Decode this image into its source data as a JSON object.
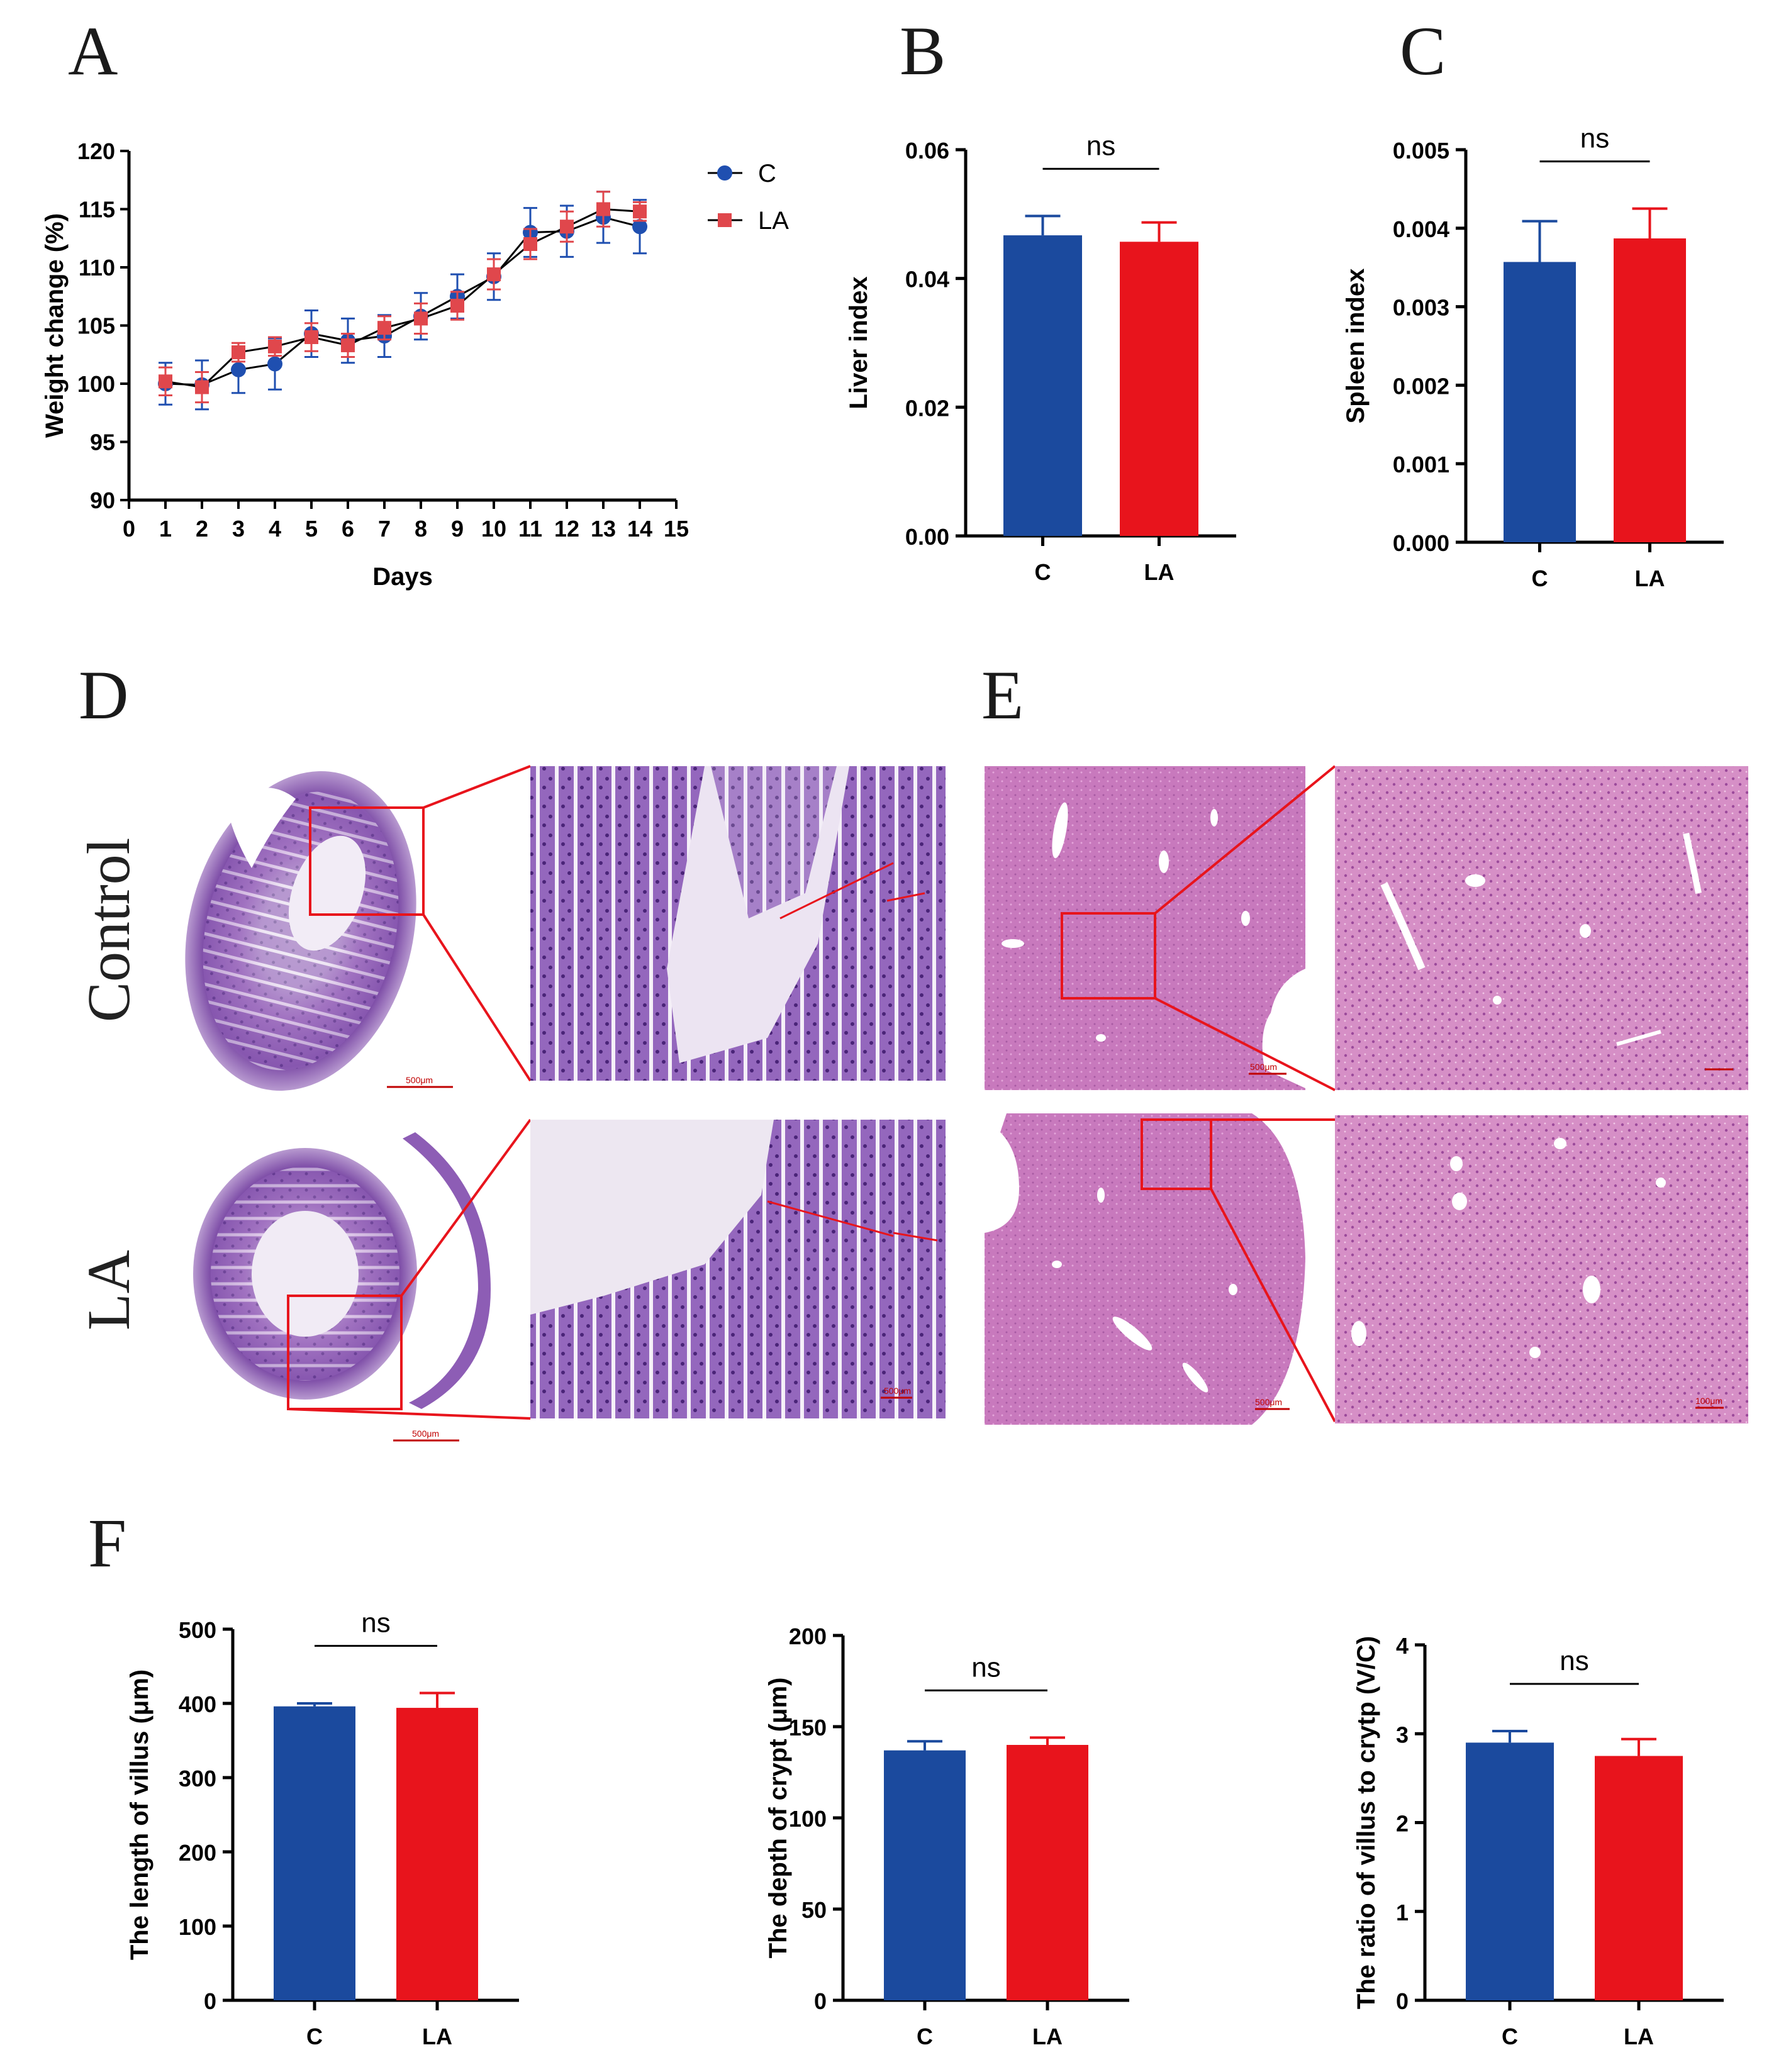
{
  "panels": {
    "A": "A",
    "B": "B",
    "C": "C",
    "D": "D",
    "E": "E",
    "F": "F"
  },
  "colors": {
    "C": "#1b4a9e",
    "LA": "#e8141c",
    "C_marker": "#1f4fb0",
    "LA_marker": "#e0474c"
  },
  "histology": {
    "row_labels": [
      "Control",
      "LA"
    ],
    "scale_bars": {
      "d_control_whole": "500μm",
      "d_la_whole": "500μm",
      "d_la_zoom": "500μm",
      "e_control_whole": "500μm",
      "e_la_whole": "500μm",
      "e_la_zoom": "100μm"
    }
  },
  "chart_data": [
    {
      "id": "A",
      "type": "line",
      "xlabel": "Days",
      "ylabel": "Weight change (%)",
      "xlim": [
        0,
        15
      ],
      "ylim": [
        90,
        120
      ],
      "x_ticks": [
        "0",
        "1",
        "2",
        "3",
        "4",
        "5",
        "6",
        "7",
        "8",
        "9",
        "10",
        "11",
        "12",
        "13",
        "14",
        "15"
      ],
      "y_ticks": [
        "90",
        "95",
        "100",
        "105",
        "110",
        "115",
        "120"
      ],
      "x": [
        1,
        2,
        3,
        4,
        5,
        6,
        7,
        8,
        9,
        10,
        11,
        12,
        13,
        14
      ],
      "series": [
        {
          "name": "C",
          "marker": "circle",
          "values": [
            100.0,
            99.9,
            101.2,
            101.7,
            104.3,
            103.7,
            104.1,
            105.8,
            107.5,
            109.2,
            113.0,
            113.1,
            114.3,
            113.5
          ],
          "errors": [
            1.8,
            2.1,
            2.0,
            2.2,
            2.0,
            1.9,
            1.8,
            2.0,
            1.9,
            2.0,
            2.1,
            2.2,
            2.2,
            2.3
          ]
        },
        {
          "name": "LA",
          "marker": "square",
          "values": [
            100.2,
            99.7,
            102.7,
            103.2,
            104.0,
            103.3,
            104.8,
            105.6,
            106.7,
            109.4,
            112.0,
            113.5,
            115.0,
            114.8
          ],
          "errors": [
            1.2,
            1.3,
            0.8,
            0.8,
            1.2,
            1.0,
            1.0,
            1.3,
            1.2,
            1.3,
            1.3,
            1.3,
            1.5,
            0.8
          ]
        }
      ],
      "legend": [
        "C",
        "LA"
      ],
      "legend_position": "right"
    },
    {
      "id": "B",
      "type": "bar",
      "categories": [
        "C",
        "LA"
      ],
      "values": [
        0.0467,
        0.0457
      ],
      "errors": [
        0.003,
        0.003
      ],
      "ylabel": "Liver index",
      "ylim": [
        0,
        0.06
      ],
      "y_ticks": [
        "0.00",
        "0.02",
        "0.04",
        "0.06"
      ],
      "y_tick_values": [
        0,
        0.02,
        0.04,
        0.06
      ],
      "annotation": "ns"
    },
    {
      "id": "C",
      "type": "bar",
      "categories": [
        "C",
        "LA"
      ],
      "values": [
        0.00357,
        0.00387
      ],
      "errors": [
        0.00052,
        0.00038
      ],
      "ylabel": "Spleen index",
      "ylim": [
        0,
        0.005
      ],
      "y_ticks": [
        "0.000",
        "0.001",
        "0.002",
        "0.003",
        "0.004",
        "0.005"
      ],
      "y_tick_values": [
        0,
        0.001,
        0.002,
        0.003,
        0.004,
        0.005
      ],
      "annotation": "ns"
    },
    {
      "id": "F1",
      "type": "bar",
      "categories": [
        "C",
        "LA"
      ],
      "values": [
        396,
        394
      ],
      "errors": [
        4,
        20
      ],
      "ylabel": "The length of villus (μm)",
      "ylim": [
        0,
        500
      ],
      "y_ticks": [
        "0",
        "100",
        "200",
        "300",
        "400",
        "500"
      ],
      "y_tick_values": [
        0,
        100,
        200,
        300,
        400,
        500
      ],
      "annotation": "ns"
    },
    {
      "id": "F2",
      "type": "bar",
      "categories": [
        "C",
        "LA"
      ],
      "values": [
        137,
        140
      ],
      "errors": [
        5,
        4
      ],
      "ylabel": "The depth of crypt (μm)",
      "ylim": [
        0,
        200
      ],
      "y_ticks": [
        "0",
        "50",
        "100",
        "150",
        "200"
      ],
      "y_tick_values": [
        0,
        50,
        100,
        150,
        200
      ],
      "annotation": "ns"
    },
    {
      "id": "F3",
      "type": "bar",
      "categories": [
        "C",
        "LA"
      ],
      "values": [
        2.9,
        2.75
      ],
      "errors": [
        0.13,
        0.19
      ],
      "ylabel": "The ratio of villus to crytp (V/C)",
      "ylim": [
        0,
        4
      ],
      "y_ticks": [
        "0",
        "1",
        "2",
        "3",
        "4"
      ],
      "y_tick_values": [
        0,
        1,
        2,
        3,
        4
      ],
      "annotation": "ns"
    }
  ]
}
